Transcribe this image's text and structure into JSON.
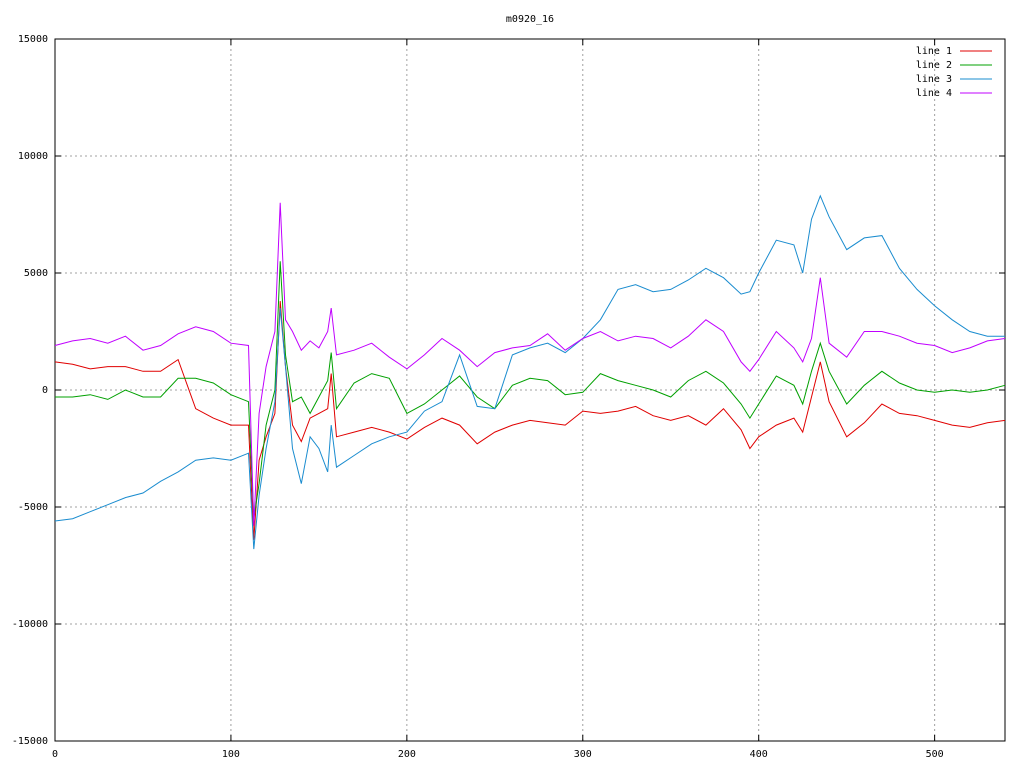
{
  "chart_data": {
    "type": "line",
    "title": "m0920_16",
    "x": [
      0,
      10,
      20,
      30,
      40,
      50,
      60,
      70,
      80,
      90,
      100,
      110,
      113,
      116,
      120,
      125,
      128,
      131,
      135,
      140,
      145,
      150,
      155,
      157,
      160,
      170,
      180,
      190,
      200,
      210,
      220,
      230,
      240,
      250,
      260,
      270,
      280,
      290,
      300,
      310,
      320,
      330,
      340,
      350,
      360,
      370,
      380,
      390,
      395,
      400,
      410,
      420,
      425,
      430,
      435,
      440,
      450,
      460,
      470,
      480,
      490,
      500,
      510,
      520,
      530,
      540
    ],
    "series": [
      {
        "name": "line 1",
        "color": "#e00000",
        "values": [
          1200,
          1100,
          900,
          1000,
          1000,
          800,
          800,
          1300,
          -800,
          -1200,
          -1500,
          -1500,
          -6400,
          -3000,
          -2000,
          -1000,
          3800,
          1000,
          -1500,
          -2200,
          -1200,
          -1000,
          -800,
          700,
          -2000,
          -1800,
          -1600,
          -1800,
          -2100,
          -1600,
          -1200,
          -1500,
          -2300,
          -1800,
          -1500,
          -1300,
          -1400,
          -1500,
          -900,
          -1000,
          -900,
          -700,
          -1100,
          -1300,
          -1100,
          -1500,
          -800,
          -1700,
          -2500,
          -2000,
          -1500,
          -1200,
          -1800,
          -300,
          1200,
          -500,
          -2000,
          -1400,
          -600,
          -1000,
          -1100,
          -1300,
          -1500,
          -1600,
          -1400,
          -1300
        ]
      },
      {
        "name": "line 2",
        "color": "#00a000",
        "values": [
          -300,
          -300,
          -200,
          -400,
          0,
          -300,
          -300,
          500,
          500,
          300,
          -200,
          -500,
          -5500,
          -4000,
          -1500,
          0,
          5500,
          1500,
          -500,
          -300,
          -1000,
          -300,
          400,
          1600,
          -800,
          300,
          700,
          500,
          -1000,
          -600,
          0,
          600,
          -300,
          -800,
          200,
          500,
          400,
          -200,
          -100,
          700,
          400,
          200,
          0,
          -300,
          400,
          800,
          300,
          -600,
          -1200,
          -600,
          600,
          200,
          -600,
          800,
          2000,
          800,
          -600,
          200,
          800,
          300,
          0,
          -100,
          0,
          -100,
          0,
          200
        ]
      },
      {
        "name": "line 3",
        "color": "#1a8ccf",
        "values": [
          -5600,
          -5500,
          -5200,
          -4900,
          -4600,
          -4400,
          -3900,
          -3500,
          -3000,
          -2900,
          -3000,
          -2700,
          -6800,
          -4500,
          -2500,
          -500,
          3500,
          1000,
          -2500,
          -4000,
          -2000,
          -2500,
          -3500,
          -1500,
          -3300,
          -2800,
          -2300,
          -2000,
          -1800,
          -900,
          -500,
          1500,
          -700,
          -800,
          1500,
          1800,
          2000,
          1600,
          2200,
          3000,
          4300,
          4500,
          4200,
          4300,
          4700,
          5200,
          4800,
          4100,
          4200,
          5000,
          6400,
          6200,
          5000,
          7300,
          8300,
          7400,
          6000,
          6500,
          6600,
          5200,
          4300,
          3600,
          3000,
          2500,
          2300,
          2300
        ]
      },
      {
        "name": "line 4",
        "color": "#c000ff",
        "values": [
          1900,
          2100,
          2200,
          2000,
          2300,
          1700,
          1900,
          2400,
          2700,
          2500,
          2000,
          1900,
          -5800,
          -1000,
          1000,
          2500,
          8000,
          3000,
          2500,
          1700,
          2100,
          1800,
          2500,
          3500,
          1500,
          1700,
          2000,
          1400,
          900,
          1500,
          2200,
          1700,
          1000,
          1600,
          1800,
          1900,
          2400,
          1700,
          2200,
          2500,
          2100,
          2300,
          2200,
          1800,
          2300,
          3000,
          2500,
          1200,
          800,
          1300,
          2500,
          1800,
          1200,
          2200,
          4800,
          2000,
          1400,
          2500,
          2500,
          2300,
          2000,
          1900,
          1600,
          1800,
          2100,
          2200
        ]
      }
    ],
    "xlim": [
      0,
      540
    ],
    "xticks": [
      0,
      100,
      200,
      300,
      400,
      500
    ],
    "ylim": [
      -15000,
      15000
    ],
    "yticks": [
      -15000,
      -10000,
      -5000,
      0,
      5000,
      10000,
      15000
    ],
    "grid": true,
    "legend": "top-right"
  }
}
